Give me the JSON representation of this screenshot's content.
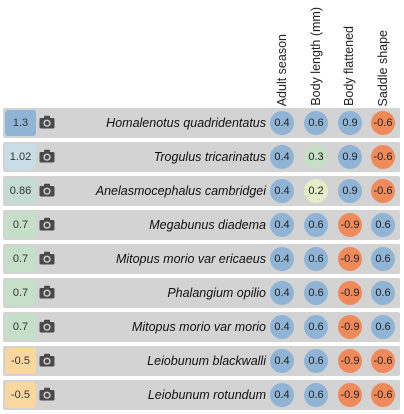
{
  "columns": [
    "Adult season",
    "Body length (mm)",
    "Body flattened",
    "Saddle shape"
  ],
  "rows": [
    {
      "score": "1.3",
      "score_color": "#8fb4d6",
      "name": "Homalenotus quadridentatus",
      "cells": [
        {
          "v": "0.4",
          "c": "#8fb4d6"
        },
        {
          "v": "0.6",
          "c": "#8fb4d6"
        },
        {
          "v": "0.9",
          "c": "#8fb4d6"
        },
        {
          "v": "-0.6",
          "c": "#f08a5a"
        }
      ]
    },
    {
      "score": "1.02",
      "score_color": "#c9dde6",
      "name": "Trogulus tricarinatus",
      "cells": [
        {
          "v": "0.4",
          "c": "#8fb4d6"
        },
        {
          "v": "0.3",
          "c": "#c5e0c4"
        },
        {
          "v": "0.9",
          "c": "#8fb4d6"
        },
        {
          "v": "-0.6",
          "c": "#f08a5a"
        }
      ]
    },
    {
      "score": "0.86",
      "score_color": "#c4dcd4",
      "name": "Anelasmocephalus cambridgei",
      "cells": [
        {
          "v": "0.4",
          "c": "#8fb4d6"
        },
        {
          "v": "0.2",
          "c": "#e4efc9"
        },
        {
          "v": "0.9",
          "c": "#8fb4d6"
        },
        {
          "v": "-0.6",
          "c": "#f08a5a"
        }
      ]
    },
    {
      "score": "0.7",
      "score_color": "#c5dfc8",
      "name": "Megabunus diadema",
      "cells": [
        {
          "v": "0.4",
          "c": "#8fb4d6"
        },
        {
          "v": "0.6",
          "c": "#8fb4d6"
        },
        {
          "v": "-0.9",
          "c": "#f08a5a"
        },
        {
          "v": "0.6",
          "c": "#8fb4d6"
        }
      ]
    },
    {
      "score": "0.7",
      "score_color": "#c5dfc8",
      "name": "Mitopus morio var ericaeus",
      "cells": [
        {
          "v": "0.4",
          "c": "#8fb4d6"
        },
        {
          "v": "0.6",
          "c": "#8fb4d6"
        },
        {
          "v": "-0.9",
          "c": "#f08a5a"
        },
        {
          "v": "0.6",
          "c": "#8fb4d6"
        }
      ]
    },
    {
      "score": "0.7",
      "score_color": "#c5dfc8",
      "name": "Phalangium opilio",
      "cells": [
        {
          "v": "0.4",
          "c": "#8fb4d6"
        },
        {
          "v": "0.6",
          "c": "#8fb4d6"
        },
        {
          "v": "-0.9",
          "c": "#f08a5a"
        },
        {
          "v": "0.6",
          "c": "#8fb4d6"
        }
      ]
    },
    {
      "score": "0.7",
      "score_color": "#c5dfc8",
      "name": "Mitopus morio var morio",
      "cells": [
        {
          "v": "0.4",
          "c": "#8fb4d6"
        },
        {
          "v": "0.6",
          "c": "#8fb4d6"
        },
        {
          "v": "-0.9",
          "c": "#f08a5a"
        },
        {
          "v": "0.6",
          "c": "#8fb4d6"
        }
      ]
    },
    {
      "score": "-0.5",
      "score_color": "#fbd7a0",
      "name": "Leiobunum blackwalli",
      "cells": [
        {
          "v": "0.4",
          "c": "#8fb4d6"
        },
        {
          "v": "0.6",
          "c": "#8fb4d6"
        },
        {
          "v": "-0.9",
          "c": "#f08a5a"
        },
        {
          "v": "-0.6",
          "c": "#f08a5a"
        }
      ]
    },
    {
      "score": "-0.5",
      "score_color": "#fbd7a0",
      "name": "Leiobunum rotundum",
      "cells": [
        {
          "v": "0.4",
          "c": "#8fb4d6"
        },
        {
          "v": "0.6",
          "c": "#8fb4d6"
        },
        {
          "v": "-0.9",
          "c": "#f08a5a"
        },
        {
          "v": "-0.6",
          "c": "#f08a5a"
        }
      ]
    }
  ],
  "icons": {
    "photo": "camera-icon"
  }
}
